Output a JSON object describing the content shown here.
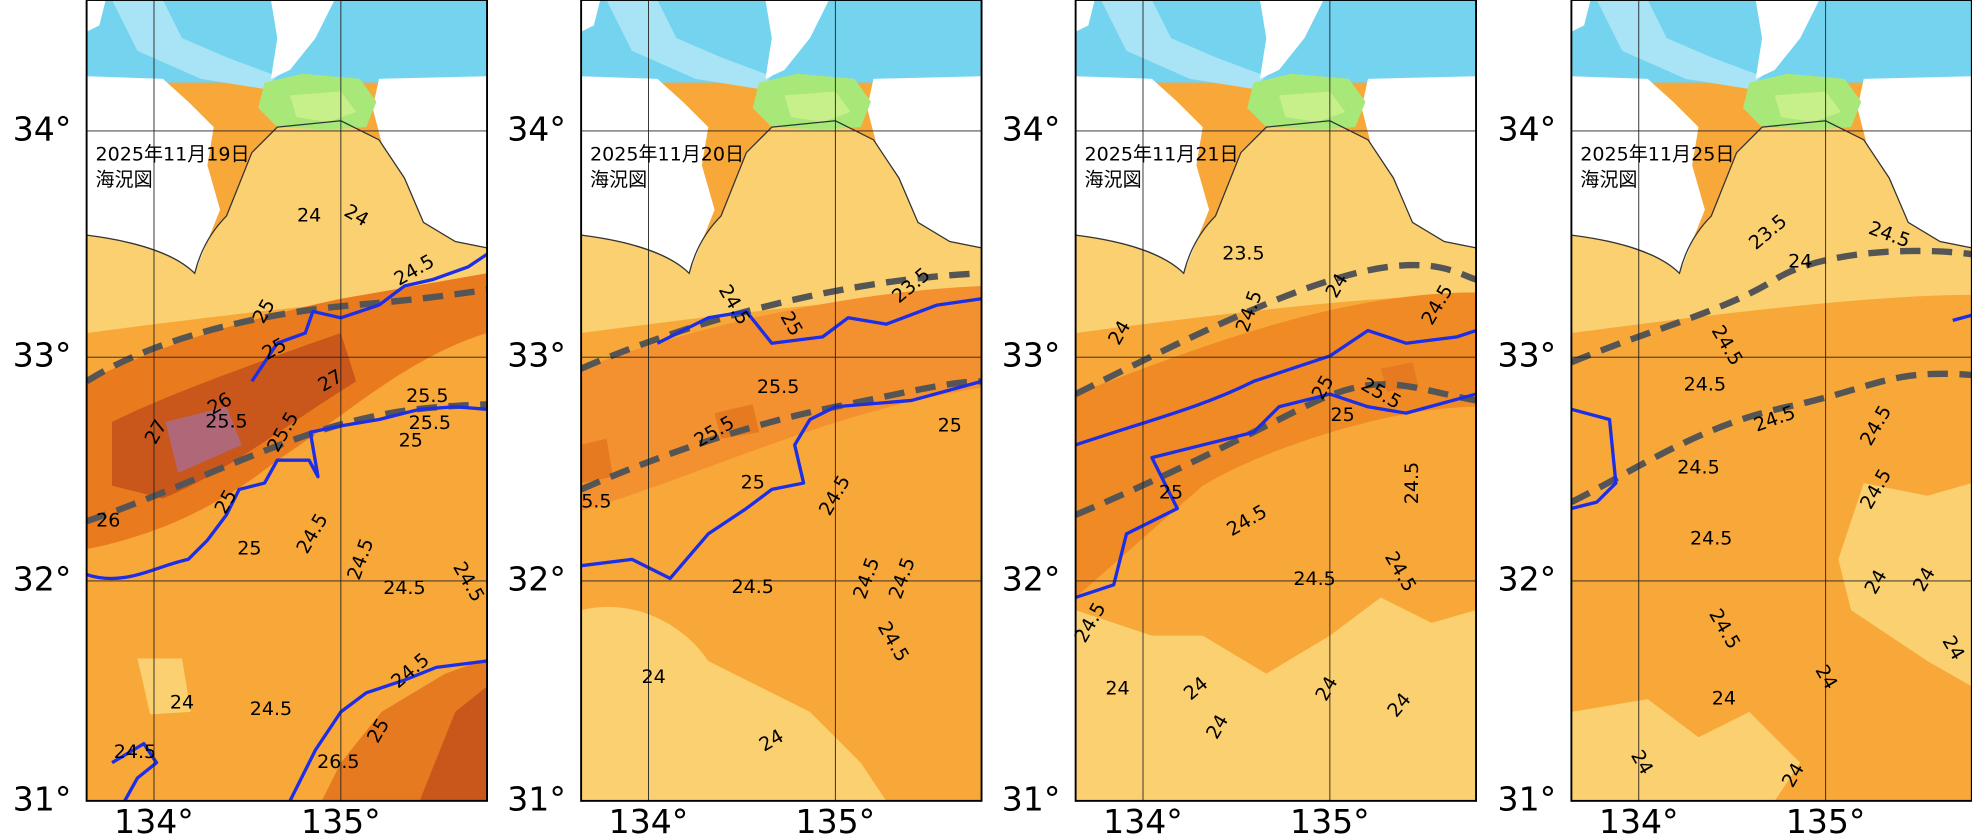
{
  "axes": {
    "lat_labels": [
      "34°",
      "33°",
      "32°",
      "31°"
    ],
    "lon_labels": [
      "134°",
      "135°"
    ]
  },
  "panels": [
    {
      "date": "2025年11月19日",
      "caption": "海況図",
      "contour_labels": [
        "24",
        "24",
        "24.5",
        "25",
        "25",
        "27",
        "26",
        "25.5",
        "27",
        "25.5",
        "25.5",
        "25",
        "25.5",
        "26",
        "25",
        "25",
        "24.5",
        "24.5",
        "24.5",
        "24.5",
        "24",
        "24.5",
        "24.5",
        "24.5",
        "25",
        "26.5"
      ]
    },
    {
      "date": "2025年11月20日",
      "caption": "海況図",
      "contour_labels": [
        "24.5",
        "25",
        "23.5",
        "25.5",
        "25.5",
        "25",
        "25",
        "24.5",
        "24.5",
        "24.5",
        "24.5",
        "24.5",
        "24",
        "24",
        "5.5"
      ]
    },
    {
      "date": "2025年11月21日",
      "caption": "海況図",
      "contour_labels": [
        "23.5",
        "24",
        "24.5",
        "24",
        "25",
        "25.5",
        "25",
        "24.5",
        "24.5",
        "24.5",
        "24.5",
        "24.5",
        "24.5",
        "24",
        "24",
        "24",
        "24",
        "24",
        "25"
      ]
    },
    {
      "date": "2025年11月25日",
      "caption": "海況図",
      "contour_labels": [
        "23.5",
        "24.5",
        "24",
        "24.5",
        "24.5",
        "24.5",
        "24.5",
        "24.5",
        "24.5",
        "24.5",
        "24",
        "24",
        "24.5",
        "24",
        "24",
        "24",
        "24",
        "24"
      ]
    }
  ]
}
